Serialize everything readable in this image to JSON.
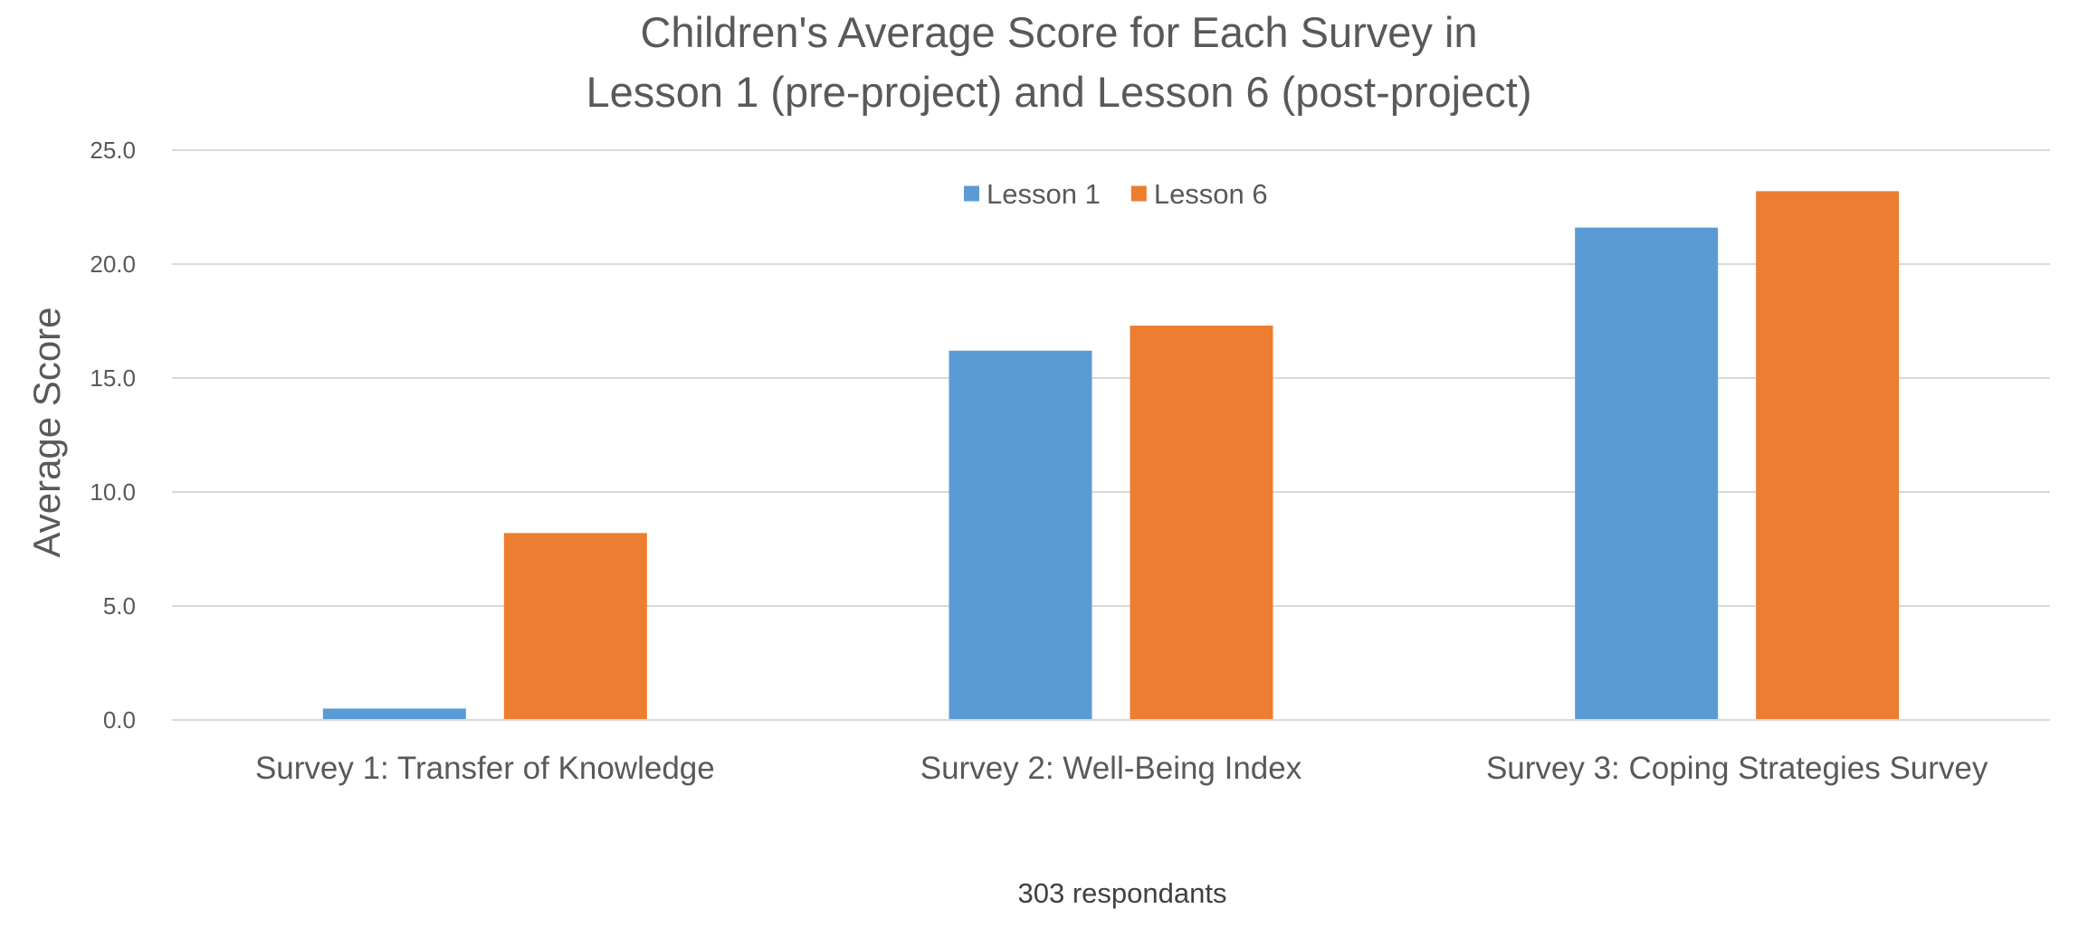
{
  "chart_data": {
    "type": "bar",
    "title_lines": [
      "Children's Average Score for Each Survey in",
      "Lesson 1 (pre-project) and Lesson 6 (post-project)"
    ],
    "xlabel": "303 respondants",
    "ylabel": "Average Score",
    "ylim": [
      0,
      25
    ],
    "ytick_values": [
      0,
      5,
      10,
      15,
      20,
      25
    ],
    "ytick_labels": [
      "0.0",
      "5.0",
      "10.0",
      "15.0",
      "20.0",
      "25.0"
    ],
    "grid": true,
    "legend_position": "top-center",
    "categories": [
      "Survey 1: Transfer of Knowledge",
      "Survey 2: Well-Being Index",
      "Survey 3: Coping Strategies Survey"
    ],
    "series": [
      {
        "name": "Lesson 1",
        "color": "#5b9bd5",
        "values": [
          0.5,
          16.2,
          21.6
        ]
      },
      {
        "name": "Lesson 6",
        "color": "#ed7d31",
        "values": [
          8.2,
          17.3,
          23.2
        ]
      }
    ]
  }
}
